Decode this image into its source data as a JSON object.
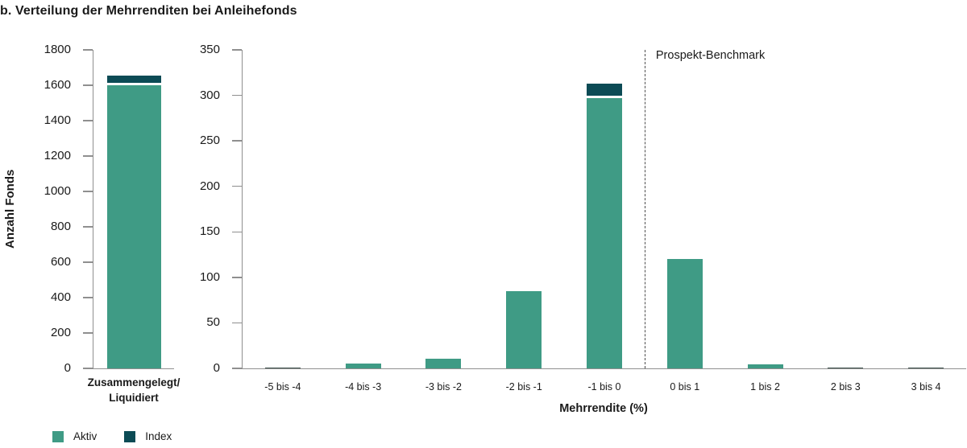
{
  "title": "b. Verteilung der Mehrrenditen bei Anleihefonds",
  "colors": {
    "aktiv": "#3F9B85",
    "index": "#0C4B55",
    "axis": "#8F8F8F",
    "text": "#1A1A1A",
    "benchmark_line": "#4D4D4D",
    "tiny_bar": "#41534F",
    "segment_gap": "#FFFFFF"
  },
  "legend": [
    {
      "label": "Aktiv",
      "color": "#3F9B85"
    },
    {
      "label": "Index",
      "color": "#0C4B55"
    }
  ],
  "chart_data": [
    {
      "type": "bar",
      "panel": "left",
      "stacked": true,
      "ylabel": "Anzahl Fonds",
      "ylim": [
        0,
        1800
      ],
      "yticks": [
        0,
        200,
        400,
        600,
        800,
        1000,
        1200,
        1400,
        1600,
        1800
      ],
      "categories": [
        "Zusammengelegt/Liquidiert"
      ],
      "category_lines": [
        "Zusammengelegt/",
        "Liquidiert"
      ],
      "series": [
        {
          "name": "Aktiv",
          "values": [
            1600
          ]
        },
        {
          "name": "Index",
          "values": [
            40
          ]
        }
      ]
    },
    {
      "type": "bar",
      "panel": "right",
      "stacked": true,
      "xlabel": "Mehrrendite (%)",
      "ylim": [
        0,
        350
      ],
      "yticks": [
        0,
        50,
        100,
        150,
        200,
        250,
        300,
        350
      ],
      "categories": [
        "-5 bis -4",
        "-4 bis -3",
        "-3 bis -2",
        "-2 bis -1",
        "-1 bis 0",
        "0 bis 1",
        "1 bis 2",
        "2 bis 3",
        "3 bis 4"
      ],
      "series": [
        {
          "name": "Aktiv",
          "values": [
            1,
            5,
            11,
            85,
            297,
            120,
            4,
            1,
            1
          ]
        },
        {
          "name": "Index",
          "values": [
            0,
            0,
            0,
            0,
            13,
            0,
            0,
            0,
            0
          ]
        }
      ],
      "benchmark": {
        "label": "Prospekt-Benchmark",
        "boundary_after_index": 4
      }
    }
  ]
}
